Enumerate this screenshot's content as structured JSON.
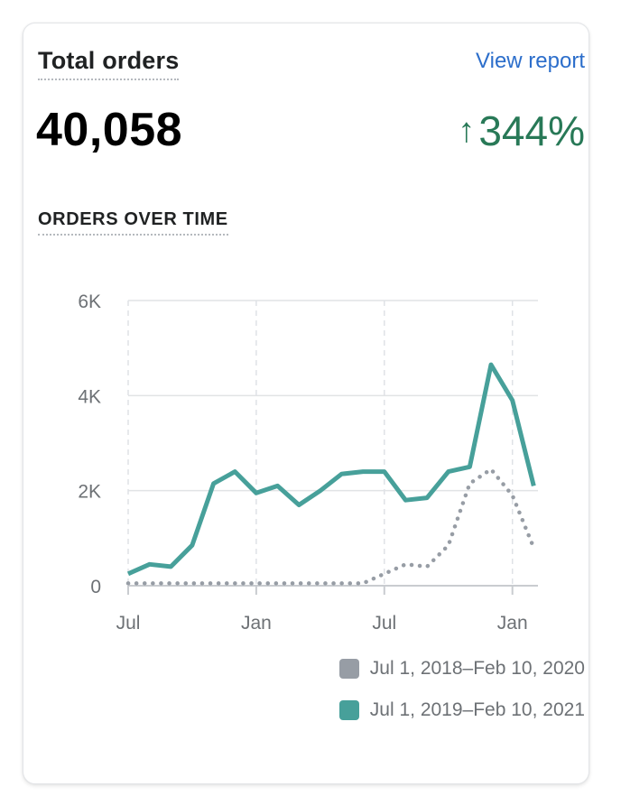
{
  "card": {
    "title": "Total orders",
    "link_label": "View report",
    "total": "40,058",
    "growth_arrow": "↑",
    "growth": "344%",
    "subtitle": "ORDERS OVER TIME"
  },
  "colors": {
    "current": "#47a09a",
    "previous": "#979da5",
    "growth": "#287957",
    "link": "#2c6ecb"
  },
  "chart_data": {
    "type": "line",
    "title": "ORDERS OVER TIME",
    "xlabel": "",
    "ylabel": "",
    "ylim": [
      0,
      6000
    ],
    "y_ticks": [
      0,
      2000,
      4000,
      6000
    ],
    "y_tick_labels": [
      "0",
      "2K",
      "4K",
      "6K"
    ],
    "x_tick_labels": [
      "Jul",
      "Jan",
      "Jul",
      "Jan"
    ],
    "x_tick_index": [
      0,
      6,
      12,
      18
    ],
    "grid": true,
    "legend_position": "bottom-right",
    "series": [
      {
        "name": "Jul 1, 2018–Feb 10, 2020",
        "style": "dotted",
        "color": "#979da5",
        "values": [
          50,
          50,
          50,
          50,
          50,
          50,
          50,
          50,
          50,
          50,
          50,
          50,
          250,
          450,
          400,
          850,
          2150,
          2450,
          1900,
          800
        ]
      },
      {
        "name": "Jul 1, 2019–Feb 10, 2021",
        "style": "solid",
        "color": "#47a09a",
        "values": [
          250,
          450,
          400,
          850,
          2150,
          2400,
          1950,
          2100,
          1700,
          2000,
          2350,
          2400,
          2400,
          1800,
          1850,
          2400,
          2500,
          4650,
          3900,
          2100
        ]
      }
    ]
  }
}
